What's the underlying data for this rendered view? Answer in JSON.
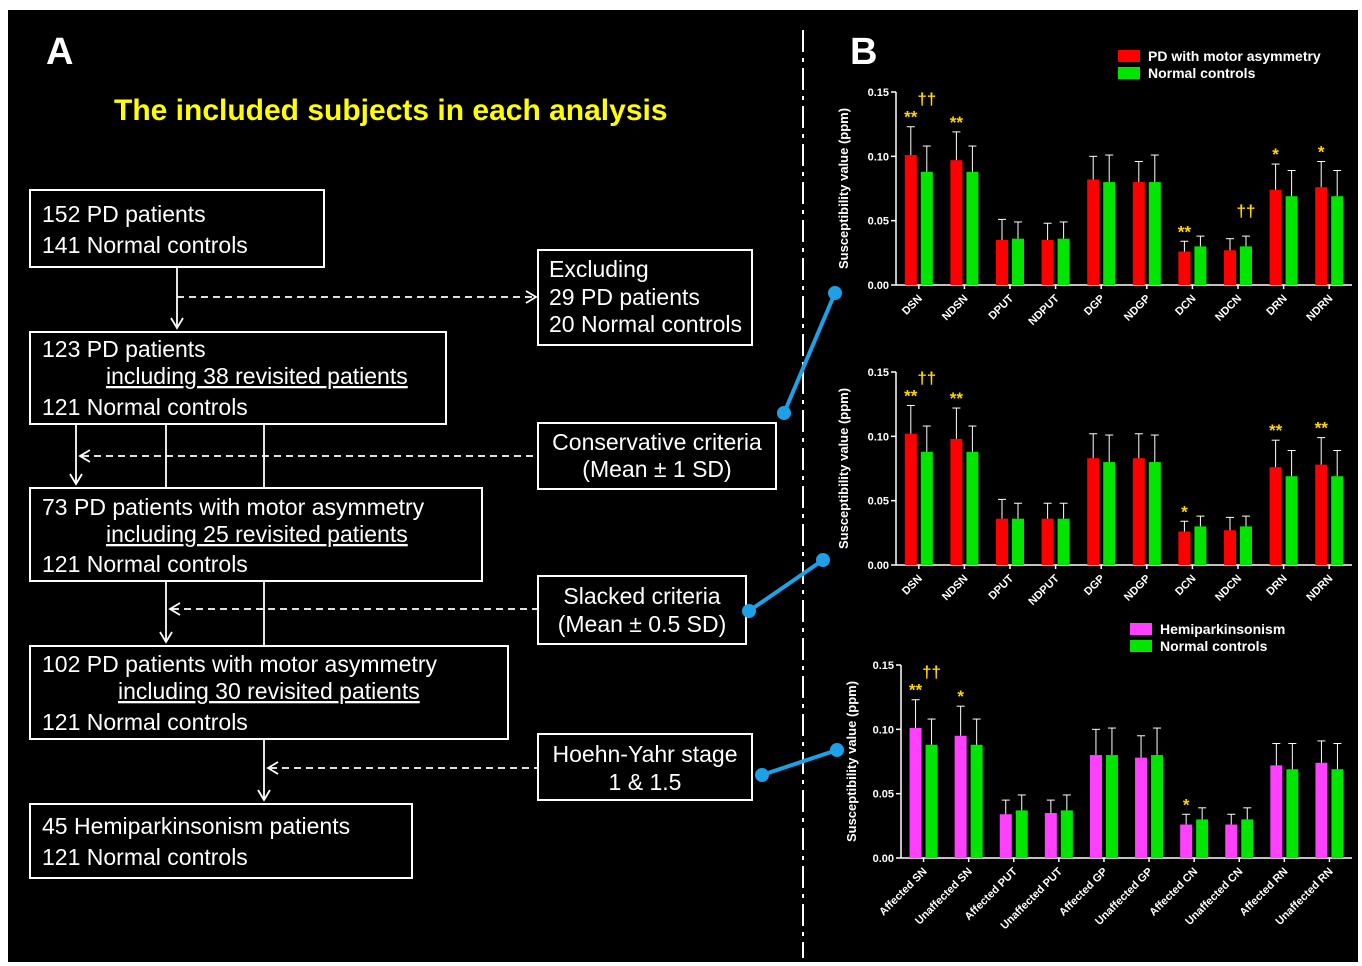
{
  "panel_a": {
    "letter": "A",
    "title": "The included subjects in each analysis",
    "boxes": [
      {
        "lines": [
          "152 PD patients",
          "141 Normal controls"
        ],
        "sub": ""
      },
      {
        "lines": [
          "123 PD patients",
          "121 Normal controls"
        ],
        "sub": "including 38 revisited patients"
      },
      {
        "lines": [
          "73 PD patients with motor asymmetry",
          "121 Normal controls"
        ],
        "sub": "including 25 revisited patients"
      },
      {
        "lines": [
          "102 PD patients with motor asymmetry",
          "121 Normal controls"
        ],
        "sub": "including 30 revisited patients"
      },
      {
        "lines": [
          "45 Hemiparkinsonism patients",
          "121 Normal controls"
        ],
        "sub": ""
      }
    ],
    "side_boxes": [
      {
        "lines": [
          "Excluding",
          "29 PD patients",
          "20 Normal controls"
        ]
      },
      {
        "lines": [
          "Conservative criteria",
          "(Mean ± 1 SD)"
        ]
      },
      {
        "lines": [
          "Slacked criteria",
          "(Mean ± 0.5 SD)"
        ]
      },
      {
        "lines": [
          "Hoehn-Yahr stage",
          "1 & 1.5"
        ]
      }
    ]
  },
  "panel_b": {
    "letter": "B"
  },
  "colors": {
    "red": "#ff0000",
    "green": "#00e600",
    "magenta": "#ff40ff",
    "yellow": "#ffd700",
    "link": "#1ea0e6"
  },
  "chart_data": [
    {
      "type": "bar",
      "ylabel": "Susceptibility value (ppm)",
      "ylim": [
        0,
        0.15
      ],
      "yticks": [
        "0.00",
        "0.05",
        "0.10",
        "0.15"
      ],
      "legend_position": "top-right",
      "categories": [
        "DSN",
        "NDSN",
        "DPUT",
        "NDPUT",
        "DGP",
        "NDGP",
        "DCN",
        "NDCN",
        "DRN",
        "NDRN"
      ],
      "series": [
        {
          "name": "PD with motor asymmetry",
          "color": "#ff0000",
          "values": [
            0.101,
            0.097,
            0.035,
            0.035,
            0.082,
            0.08,
            0.026,
            0.027,
            0.074,
            0.076
          ],
          "errors": [
            0.022,
            0.022,
            0.016,
            0.013,
            0.018,
            0.016,
            0.008,
            0.009,
            0.02,
            0.02
          ]
        },
        {
          "name": "Normal controls",
          "color": "#00e600",
          "values": [
            0.088,
            0.088,
            0.036,
            0.036,
            0.08,
            0.08,
            0.03,
            0.03,
            0.069,
            0.069
          ],
          "errors": [
            0.02,
            0.02,
            0.013,
            0.013,
            0.021,
            0.021,
            0.008,
            0.008,
            0.02,
            0.02
          ]
        }
      ],
      "annotations": [
        {
          "category": 0,
          "text": "**"
        },
        {
          "category": 0,
          "text": "††"
        },
        {
          "category": 1,
          "text": "**"
        },
        {
          "category": 6,
          "text": "**"
        },
        {
          "category": 7,
          "text": "††"
        },
        {
          "category": 8,
          "text": "*"
        },
        {
          "category": 9,
          "text": "*"
        }
      ]
    },
    {
      "type": "bar",
      "ylabel": "Susceptibility value (ppm)",
      "ylim": [
        0,
        0.15
      ],
      "yticks": [
        "0.00",
        "0.05",
        "0.10",
        "0.15"
      ],
      "categories": [
        "DSN",
        "NDSN",
        "DPUT",
        "NDPUT",
        "DGP",
        "NDGP",
        "DCN",
        "NDCN",
        "DRN",
        "NDRN"
      ],
      "series": [
        {
          "name": "",
          "color": "#ff0000",
          "values": [
            0.102,
            0.098,
            0.036,
            0.036,
            0.083,
            0.083,
            0.026,
            0.027,
            0.076,
            0.078
          ],
          "errors": [
            0.022,
            0.024,
            0.015,
            0.012,
            0.019,
            0.019,
            0.008,
            0.01,
            0.021,
            0.021
          ]
        },
        {
          "name": "",
          "color": "#00e600",
          "values": [
            0.088,
            0.088,
            0.036,
            0.036,
            0.08,
            0.08,
            0.03,
            0.03,
            0.069,
            0.069
          ],
          "errors": [
            0.02,
            0.02,
            0.012,
            0.012,
            0.021,
            0.021,
            0.008,
            0.008,
            0.02,
            0.02
          ]
        }
      ],
      "annotations": [
        {
          "category": 0,
          "text": "**"
        },
        {
          "category": 0,
          "text": "††"
        },
        {
          "category": 1,
          "text": "**"
        },
        {
          "category": 6,
          "text": "*"
        },
        {
          "category": 8,
          "text": "**"
        },
        {
          "category": 9,
          "text": "**"
        }
      ]
    },
    {
      "type": "bar",
      "ylabel": "Susceptibility value (ppm)",
      "ylim": [
        0,
        0.15
      ],
      "yticks": [
        "0.00",
        "0.05",
        "0.10",
        "0.15"
      ],
      "legend_position": "top-right",
      "categories": [
        "Affected SN",
        "Unaffected SN",
        "Affected PUT",
        "Unaffected PUT",
        "Affected GP",
        "Unaffected GP",
        "Affected CN",
        "Unaffected CN",
        "Affected RN",
        "Unaffected RN"
      ],
      "series": [
        {
          "name": "Hemiparkinsonism",
          "color": "#ff40ff",
          "values": [
            0.101,
            0.095,
            0.034,
            0.035,
            0.08,
            0.078,
            0.026,
            0.026,
            0.072,
            0.074
          ],
          "errors": [
            0.022,
            0.023,
            0.011,
            0.01,
            0.02,
            0.017,
            0.008,
            0.008,
            0.017,
            0.017
          ]
        },
        {
          "name": "Normal controls",
          "color": "#00e600",
          "values": [
            0.088,
            0.088,
            0.037,
            0.037,
            0.08,
            0.08,
            0.03,
            0.03,
            0.069,
            0.069
          ],
          "errors": [
            0.02,
            0.02,
            0.012,
            0.012,
            0.021,
            0.021,
            0.009,
            0.009,
            0.02,
            0.02
          ]
        }
      ],
      "annotations": [
        {
          "category": 0,
          "text": "**"
        },
        {
          "category": 0,
          "text": "††"
        },
        {
          "category": 1,
          "text": "*"
        },
        {
          "category": 6,
          "text": "*"
        }
      ]
    }
  ]
}
